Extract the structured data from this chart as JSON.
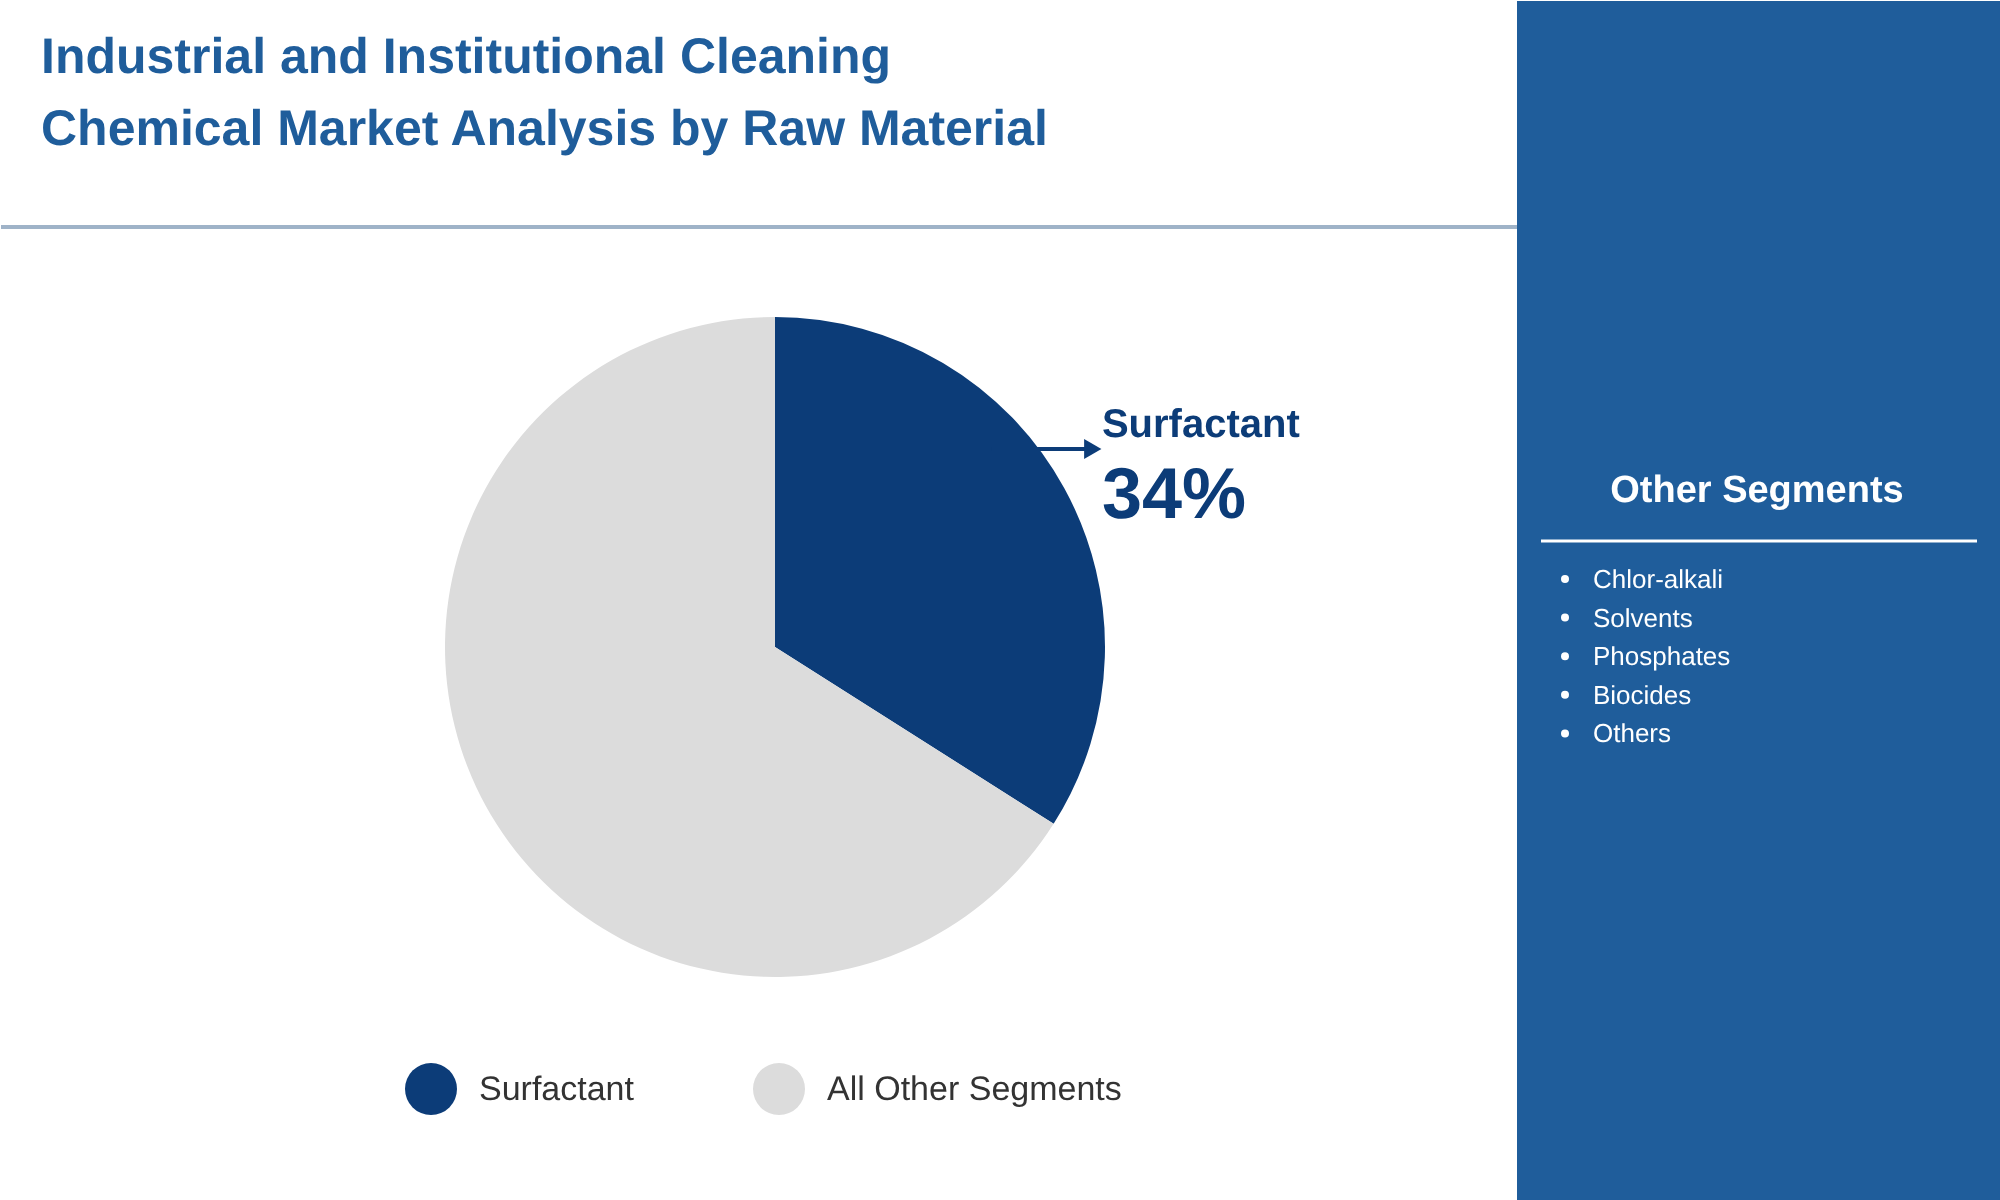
{
  "chart_data": {
    "type": "pie",
    "title": "Industrial and Institutional Cleaning Chemical Market Analysis by Raw Material",
    "categories": [
      "Surfactant",
      "All Other Segments"
    ],
    "values": [
      34,
      66
    ],
    "colors": [
      "#0c3c78",
      "#dcdcdc"
    ],
    "value_labels": [
      "34%",
      null
    ],
    "legend": "bottom",
    "annotations": [
      "Other Segments",
      "Chlor-alkali",
      "Solvents",
      "Phosphates",
      "Biocides",
      "Others"
    ]
  }
}
